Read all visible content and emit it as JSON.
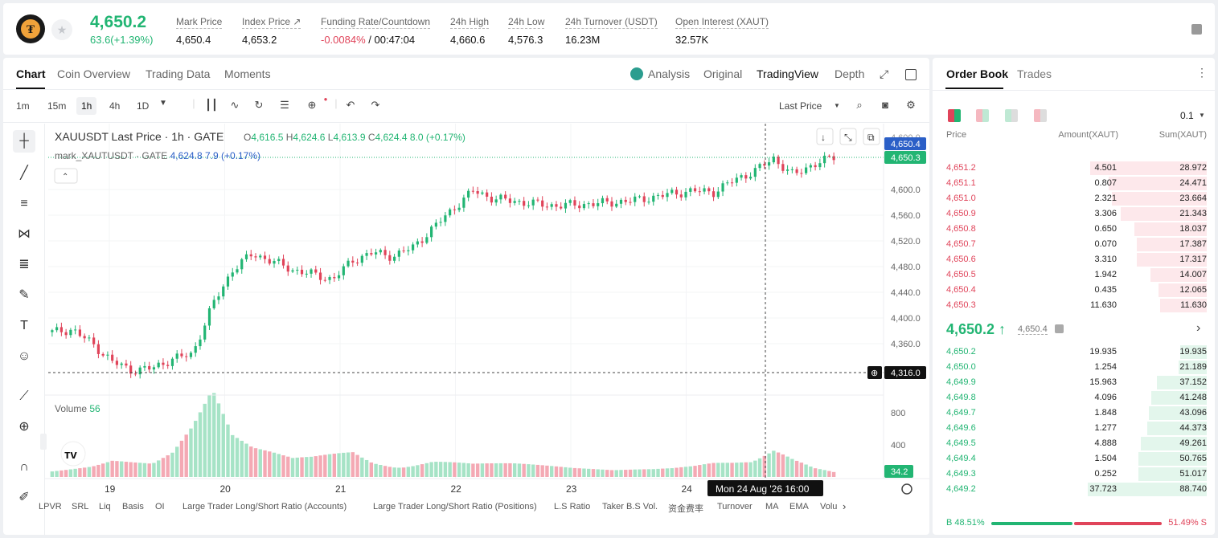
{
  "header": {
    "last_price": "4,650.2",
    "change": "63.6(+1.39%)",
    "stats": [
      {
        "label": "Mark Price",
        "value": "4,650.4"
      },
      {
        "label": "Index Price ↗",
        "value": "4,653.2"
      },
      {
        "label": "Funding Rate/Countdown",
        "value_neg": "-0.0084%",
        "value": " / 00:47:04"
      },
      {
        "label": "24h High",
        "value": "4,660.6"
      },
      {
        "label": "24h Low",
        "value": "4,576.3"
      },
      {
        "label": "24h Turnover (USDT)",
        "value": "16.23M"
      },
      {
        "label": "Open Interest (XAUT)",
        "value": "32.57K"
      }
    ]
  },
  "chart_tabs": {
    "tabs": [
      "Chart",
      "Coin Overview",
      "Trading Data",
      "Moments"
    ],
    "right": [
      "Analysis",
      "Original",
      "TradingView",
      "Depth"
    ]
  },
  "toolbar": {
    "timeframes": [
      "1m",
      "15m",
      "1h",
      "4h",
      "1D"
    ],
    "price_type": "Last Price"
  },
  "legend": {
    "title": "XAUUSDT Last Price · 1h · GATE",
    "o": "4,616.5",
    "h": "4,624.6",
    "l": "4,613.9",
    "c": "4,624.4",
    "chg": "8.0 (+0.17%)",
    "mark_label": "mark_XAUTUSDT · GATE",
    "mark_val": "4,624.8",
    "mark_chg": "7.9 (+0.17%)",
    "volume_label": "Volume",
    "volume_val": "56"
  },
  "axis": {
    "price_ticks": [
      "4,600.0",
      "4,560.0",
      "4,520.0",
      "4,480.0",
      "4,440.0",
      "4,400.0",
      "4,360.0"
    ],
    "partial_tick": "4,600.0",
    "volume_ticks": [
      "800",
      "400"
    ],
    "date_ticks": [
      "19",
      "20",
      "21",
      "22",
      "23",
      "24"
    ],
    "price_labels": {
      "last": "4,650.4",
      "mark": "4,650.3",
      "crosshair": "4,316.0",
      "volume": "34.2"
    },
    "crosshair_time": "Mon 24 Aug '26   16:00"
  },
  "bottom_indicators": [
    "LPVR",
    "SRL",
    "Liq",
    "Basis",
    "OI",
    "Large Trader Long/Short Ratio (Accounts)",
    "Large Trader Long/Short Ratio (Positions)",
    "L.S Ratio",
    "Taker B.S Vol.",
    "资金费率",
    "Turnover",
    "MA",
    "EMA",
    "Volu"
  ],
  "order_book": {
    "tabs": [
      "Order Book",
      "Trades"
    ],
    "precision": "0.1",
    "headers": [
      "Price",
      "Amount(XAUT)",
      "Sum(XAUT)"
    ],
    "asks": [
      {
        "price": "4,651.2",
        "amount": "4.501",
        "sum": "28.972",
        "depth": 28.972
      },
      {
        "price": "4,651.1",
        "amount": "0.807",
        "sum": "24.471",
        "depth": 24.471
      },
      {
        "price": "4,651.0",
        "amount": "2.321",
        "sum": "23.664",
        "depth": 23.664
      },
      {
        "price": "4,650.9",
        "amount": "3.306",
        "sum": "21.343",
        "depth": 21.343
      },
      {
        "price": "4,650.8",
        "amount": "0.650",
        "sum": "18.037",
        "depth": 18.037
      },
      {
        "price": "4,650.7",
        "amount": "0.070",
        "sum": "17.387",
        "depth": 17.387
      },
      {
        "price": "4,650.6",
        "amount": "3.310",
        "sum": "17.317",
        "depth": 17.317
      },
      {
        "price": "4,650.5",
        "amount": "1.942",
        "sum": "14.007",
        "depth": 14.007
      },
      {
        "price": "4,650.4",
        "amount": "0.435",
        "sum": "12.065",
        "depth": 12.065
      },
      {
        "price": "4,650.3",
        "amount": "11.630",
        "sum": "11.630",
        "depth": 11.63
      }
    ],
    "mid_price": "4,650.2 ↑",
    "mid_mark": "4,650.4",
    "bids": [
      {
        "price": "4,650.2",
        "amount": "19.935",
        "sum": "19.935",
        "depth": 19.935
      },
      {
        "price": "4,650.0",
        "amount": "1.254",
        "sum": "21.189",
        "depth": 21.189
      },
      {
        "price": "4,649.9",
        "amount": "15.963",
        "sum": "37.152",
        "depth": 37.152
      },
      {
        "price": "4,649.8",
        "amount": "4.096",
        "sum": "41.248",
        "depth": 41.248
      },
      {
        "price": "4,649.7",
        "amount": "1.848",
        "sum": "43.096",
        "depth": 43.096
      },
      {
        "price": "4,649.6",
        "amount": "1.277",
        "sum": "44.373",
        "depth": 44.373
      },
      {
        "price": "4,649.5",
        "amount": "4.888",
        "sum": "49.261",
        "depth": 49.261
      },
      {
        "price": "4,649.4",
        "amount": "1.504",
        "sum": "50.765",
        "depth": 50.765
      },
      {
        "price": "4,649.3",
        "amount": "0.252",
        "sum": "51.017",
        "depth": 51.017
      },
      {
        "price": "4,649.2",
        "amount": "37.723",
        "sum": "88.740",
        "depth": 88.74
      }
    ],
    "buy_ratio": "B 48.51%",
    "sell_ratio": "51.49% S",
    "buy_fraction": 0.4851
  },
  "colors": {
    "up": "#22b573",
    "down": "#e0445a"
  },
  "chart_data": {
    "type": "candlestick",
    "x": [
      "19",
      "20",
      "21",
      "22",
      "23",
      "24"
    ],
    "close_trend": [
      4378,
      4382,
      4360,
      4332,
      4318,
      4322,
      4336,
      4344,
      4420,
      4475,
      4500,
      4488,
      4475,
      4468,
      4460,
      4490,
      4502,
      4496,
      4510,
      4540,
      4570,
      4598,
      4586,
      4582,
      4578,
      4575,
      4576,
      4578,
      4580,
      4583,
      4588,
      4594,
      4598,
      4596,
      4614,
      4628,
      4648,
      4622,
      4640,
      4650
    ],
    "volume_trend": [
      120,
      140,
      160,
      220,
      180,
      150,
      260,
      520,
      880,
      420,
      300,
      260,
      210,
      240,
      300,
      360,
      230,
      190,
      210,
      250,
      210,
      170,
      160,
      150,
      130,
      110,
      90,
      80,
      70,
      80,
      90,
      110,
      150,
      220,
      260,
      330,
      460,
      260,
      120,
      60
    ],
    "ylim": [
      4300,
      4660
    ],
    "volume_ylim": [
      0,
      900
    ]
  }
}
